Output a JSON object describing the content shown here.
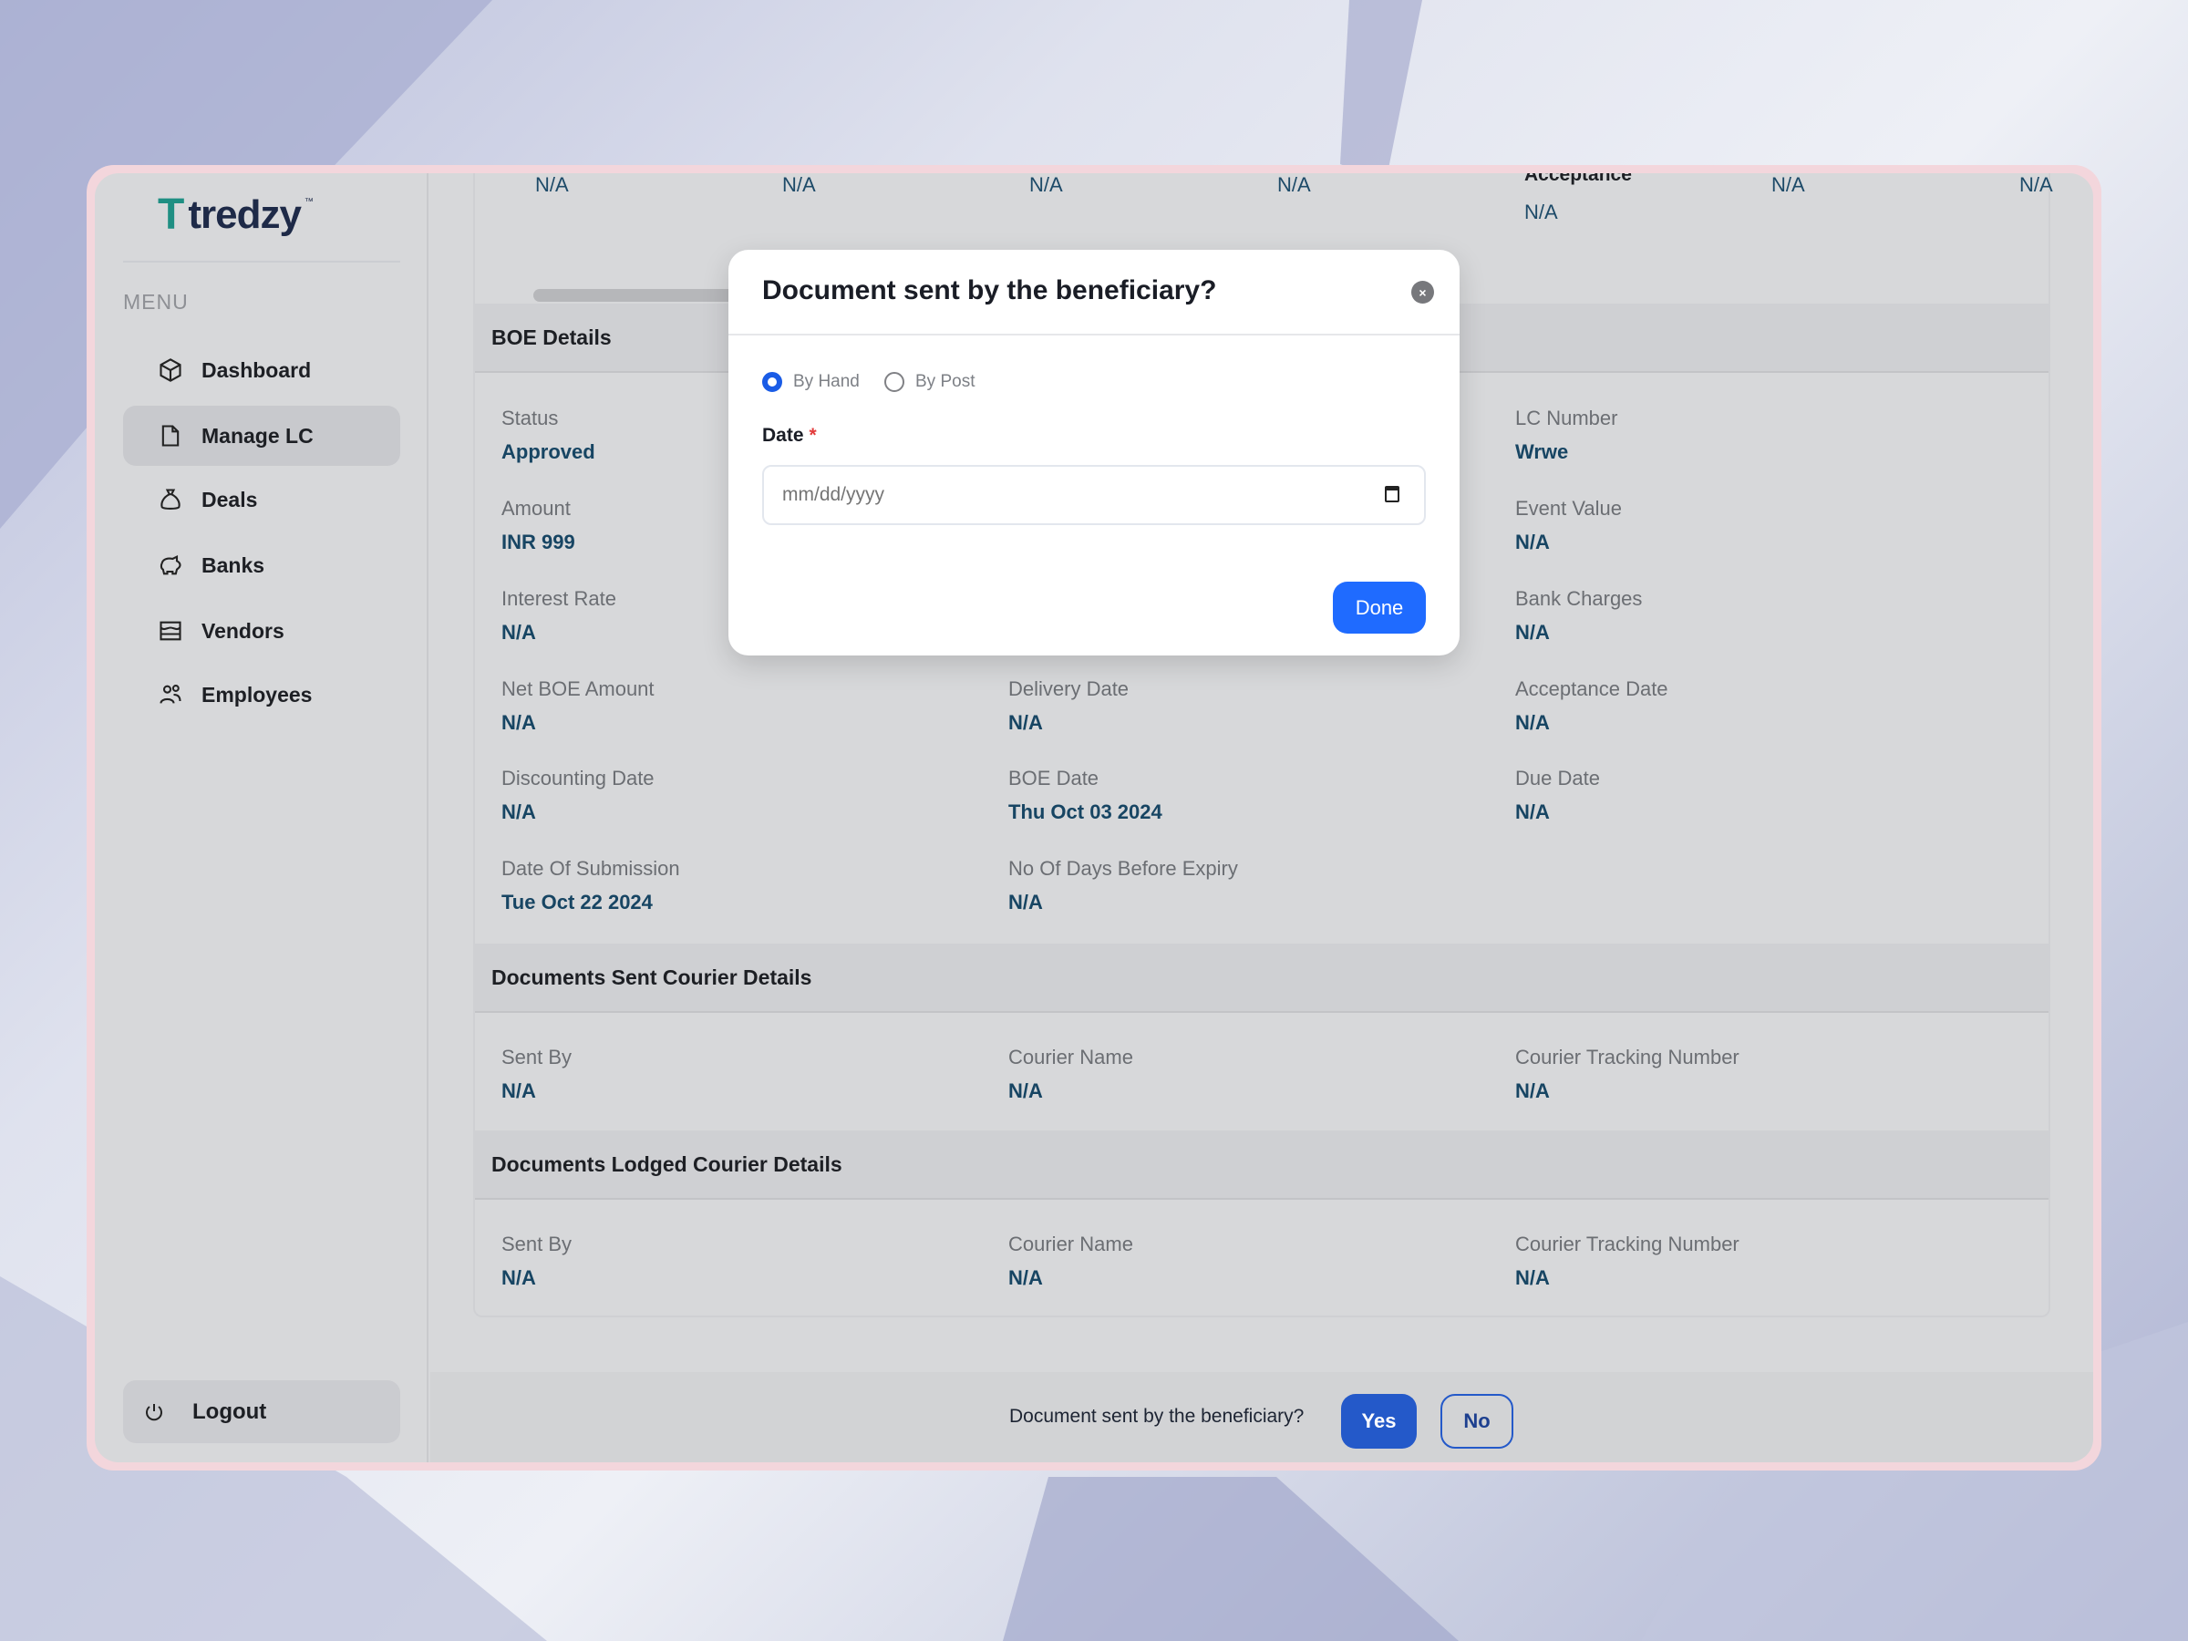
{
  "brand": {
    "name": "tredzy",
    "tm": "™"
  },
  "sidebar": {
    "menu_label": "MENU",
    "items": [
      {
        "label": "Dashboard",
        "icon": "cube-icon"
      },
      {
        "label": "Manage LC",
        "icon": "document-icon",
        "active": true
      },
      {
        "label": "Deals",
        "icon": "money-bag-icon"
      },
      {
        "label": "Banks",
        "icon": "piggy-bank-icon"
      },
      {
        "label": "Vendors",
        "icon": "store-icon"
      },
      {
        "label": "Employees",
        "icon": "users-icon"
      }
    ],
    "logout": "Logout"
  },
  "top_row": {
    "values": [
      "N/A",
      "N/A",
      "N/A",
      "N/A",
      "N/A",
      "N/A"
    ],
    "acceptance_label": "Acceptance",
    "acceptance_value": "N/A"
  },
  "boe": {
    "title": "BOE Details",
    "fields": [
      {
        "label": "Status",
        "value": "Approved"
      },
      {
        "label": "LC Number",
        "value": "Wrwe"
      },
      {
        "label": "Amount",
        "value": "INR 999"
      },
      {
        "label": "Event Value",
        "value": "N/A"
      },
      {
        "label": "Interest Rate",
        "value": "N/A"
      },
      {
        "label": "Bank Charges",
        "value": "N/A"
      },
      {
        "label": "Net BOE Amount",
        "value": "N/A"
      },
      {
        "label": "Delivery Date",
        "value": "N/A"
      },
      {
        "label": "Acceptance Date",
        "value": "N/A"
      },
      {
        "label": "Discounting Date",
        "value": "N/A"
      },
      {
        "label": "BOE Date",
        "value": "Thu Oct 03 2024"
      },
      {
        "label": "Due Date",
        "value": "N/A"
      },
      {
        "label": "Date Of Submission",
        "value": "Tue Oct 22 2024"
      },
      {
        "label": "No Of Days Before Expiry",
        "value": "N/A"
      }
    ]
  },
  "sent_courier": {
    "title": "Documents Sent Courier Details",
    "fields": [
      {
        "label": "Sent By",
        "value": "N/A"
      },
      {
        "label": "Courier Name",
        "value": "N/A"
      },
      {
        "label": "Courier Tracking Number",
        "value": "N/A"
      }
    ]
  },
  "lodged_courier": {
    "title": "Documents Lodged Courier Details",
    "fields": [
      {
        "label": "Sent By",
        "value": "N/A"
      },
      {
        "label": "Courier Name",
        "value": "N/A"
      },
      {
        "label": "Courier Tracking Number",
        "value": "N/A"
      }
    ]
  },
  "bottom_bar": {
    "question": "Document sent by the beneficiary?",
    "yes": "Yes",
    "no": "No"
  },
  "modal": {
    "title": "Document sent by the beneficiary?",
    "close": "×",
    "options": [
      "By Hand",
      "By Post"
    ],
    "selected": "By Hand",
    "date_label": "Date",
    "required_mark": "*",
    "date_placeholder": "mm/dd/yyyy",
    "date_value": "",
    "done": "Done"
  },
  "colors": {
    "primary": "#1f6bff",
    "yes_button": "#2459c9",
    "value_text": "#174563",
    "required": "#e23b3b"
  }
}
